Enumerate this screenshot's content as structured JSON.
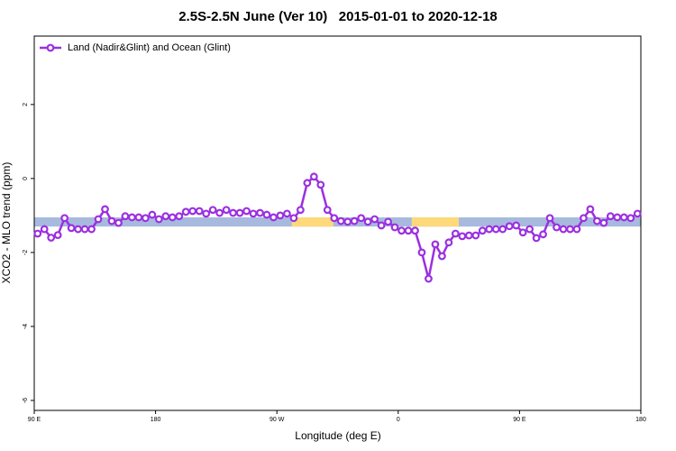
{
  "chart_data": {
    "type": "line",
    "title": "2.5S-2.5N June (Ver 10)   2015-01-01 to 2020-12-18",
    "x_label": "Longitude (deg E)",
    "y_label": "XCO2 - MLO trend (ppm)",
    "xlim": [
      90,
      540
    ],
    "ylim": [
      -6.27,
      3.85
    ],
    "xticks": [
      {
        "value": 90,
        "label": "90 E"
      },
      {
        "value": 180,
        "label": "180"
      },
      {
        "value": 270,
        "label": "90 W"
      },
      {
        "value": 360,
        "label": "0"
      },
      {
        "value": 450,
        "label": "90 E"
      },
      {
        "value": 540,
        "label": "180"
      }
    ],
    "yticks": [
      -6,
      -4,
      -2,
      0,
      2
    ],
    "legend": "top-left",
    "surface_strip": {
      "ylim": [
        -1.3,
        -1.05
      ],
      "ocean_color": "#a7bade",
      "land_color": "#fdd97a",
      "land_segments": [
        [
          281,
          312
        ],
        [
          370,
          405
        ]
      ]
    },
    "x": [
      92.5,
      97.5,
      102.5,
      107.5,
      112.5,
      117.5,
      122.5,
      127.5,
      132.5,
      137.5,
      142.5,
      147.5,
      152.5,
      157.5,
      162.5,
      167.5,
      172.5,
      177.5,
      182.5,
      187.5,
      192.5,
      197.5,
      202.5,
      207.5,
      212.5,
      217.5,
      222.5,
      227.5,
      232.5,
      237.5,
      242.5,
      247.5,
      252.5,
      257.5,
      262.5,
      267.5,
      272.5,
      277.5,
      282.5,
      287.5,
      292.5,
      297.5,
      302.5,
      307.5,
      312.5,
      317.5,
      322.5,
      327.5,
      332.5,
      337.5,
      342.5,
      347.5,
      352.5,
      357.5,
      362.5,
      367.5,
      372.5,
      377.5,
      382.5,
      387.5,
      392.5,
      397.5,
      402.5,
      407.5,
      412.5,
      417.5,
      422.5,
      427.5,
      432.5,
      437.5,
      442.5,
      447.5,
      452.5,
      457.5,
      462.5,
      467.5,
      472.5,
      477.5,
      482.5,
      487.5,
      492.5,
      497.5,
      502.5,
      507.5,
      512.5,
      517.5,
      522.5,
      527.5,
      532.5,
      537.5
    ],
    "series": [
      {
        "name": "Land (Nadir&Glint) and Ocean (Glint)",
        "color": "#9b30e0",
        "values": [
          -1.49,
          -1.37,
          -1.6,
          -1.53,
          -1.07,
          -1.34,
          -1.37,
          -1.37,
          -1.37,
          -1.1,
          -0.83,
          -1.15,
          -1.2,
          -1.02,
          -1.05,
          -1.05,
          -1.07,
          -0.98,
          -1.1,
          -1.02,
          -1.05,
          -1.02,
          -0.9,
          -0.88,
          -0.88,
          -0.95,
          -0.85,
          -0.93,
          -0.85,
          -0.93,
          -0.93,
          -0.88,
          -0.95,
          -0.93,
          -0.98,
          -1.05,
          -1.0,
          -0.95,
          -1.07,
          -0.85,
          -0.12,
          0.05,
          -0.17,
          -0.85,
          -1.07,
          -1.15,
          -1.17,
          -1.15,
          -1.07,
          -1.17,
          -1.1,
          -1.27,
          -1.17,
          -1.32,
          -1.41,
          -1.41,
          -1.41,
          -2.0,
          -2.71,
          -1.78,
          -2.1,
          -1.73,
          -1.49,
          -1.56,
          -1.54,
          -1.54,
          -1.41,
          -1.37,
          -1.37,
          -1.37,
          -1.29,
          -1.27,
          -1.46,
          -1.37,
          -1.61,
          -1.51,
          -1.07,
          -1.32,
          -1.37,
          -1.37,
          -1.37,
          -1.07,
          -0.83,
          -1.15,
          -1.2,
          -1.02,
          -1.05,
          -1.05,
          -1.07,
          -0.95
        ]
      }
    ]
  }
}
